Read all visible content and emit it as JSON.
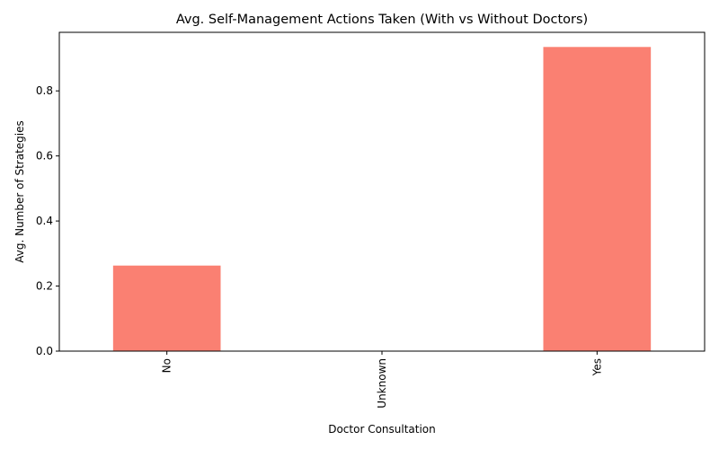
{
  "chart_data": {
    "type": "bar",
    "title": "Avg. Self-Management Actions Taken (With vs Without Doctors)",
    "xlabel": "Doctor Consultation",
    "ylabel": "Avg. Number of Strategies",
    "categories": [
      "No",
      "Unknown",
      "Yes"
    ],
    "values": [
      0.263,
      0,
      0.935
    ],
    "ylim": [
      0,
      0.98
    ],
    "yticks": [
      0.0,
      0.2,
      0.4,
      0.6,
      0.8
    ],
    "ytick_labels": [
      "0.0",
      "0.2",
      "0.4",
      "0.6",
      "0.8"
    ],
    "bar_color": "#fa8072",
    "xtick_rotation": "vertical",
    "grid": false,
    "legend": "none"
  }
}
